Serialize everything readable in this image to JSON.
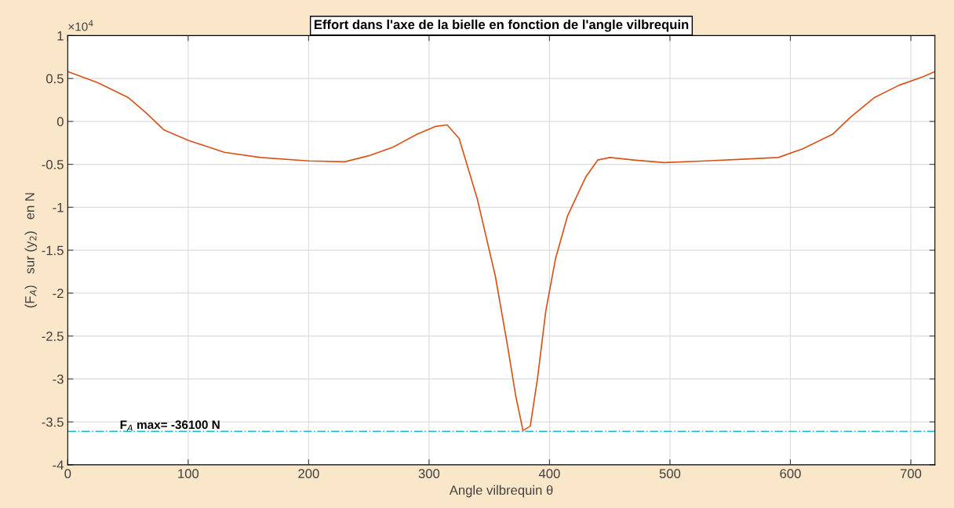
{
  "chart_data": {
    "type": "line",
    "title": "Effort dans l'axe de la bielle en fonction de l'angle vilbrequin",
    "xlabel": "Angle vilbrequin θ",
    "ylabel": "(F$_{A}$)   sur (y$_{2}$)   en N",
    "annotations": [
      "×10$^{4}$",
      "F$_{A}$ max= -36100 N"
    ],
    "x": [
      0,
      25,
      50,
      65,
      80,
      100,
      130,
      160,
      200,
      230,
      250,
      270,
      290,
      305,
      315,
      325,
      340,
      355,
      365,
      372,
      378,
      384,
      390,
      397,
      405,
      415,
      430,
      440,
      450,
      470,
      495,
      530,
      560,
      590,
      610,
      635,
      650,
      670,
      690,
      710,
      720
    ],
    "series": [
      {
        "color": "#d95319",
        "values": [
          0.58,
          0.45,
          0.28,
          0.1,
          -0.1,
          -0.22,
          -0.36,
          -0.42,
          -0.46,
          -0.47,
          -0.4,
          -0.3,
          -0.15,
          -0.06,
          -0.04,
          -0.2,
          -0.9,
          -1.8,
          -2.6,
          -3.2,
          -3.6,
          -3.55,
          -3.0,
          -2.2,
          -1.6,
          -1.1,
          -0.65,
          -0.45,
          -0.42,
          -0.45,
          -0.48,
          -0.46,
          -0.44,
          -0.42,
          -0.32,
          -0.15,
          0.05,
          0.28,
          0.42,
          0.52,
          0.58
        ]
      }
    ],
    "xlim": [
      0,
      720
    ],
    "xticks": [
      0,
      100,
      200,
      300,
      400,
      500,
      600,
      700
    ],
    "ylim": [
      -4,
      1
    ],
    "yticks": [
      -4,
      -3.5,
      -3,
      -2.5,
      -2,
      -1.5,
      -1,
      -0.5,
      0,
      0.5,
      1
    ],
    "ref_lines": [
      {
        "axis": "y",
        "value": -3.61,
        "color": "#17bfcf",
        "line_style": "dashdot"
      }
    ],
    "grid": true,
    "line_style": "solid",
    "marker": "none"
  }
}
